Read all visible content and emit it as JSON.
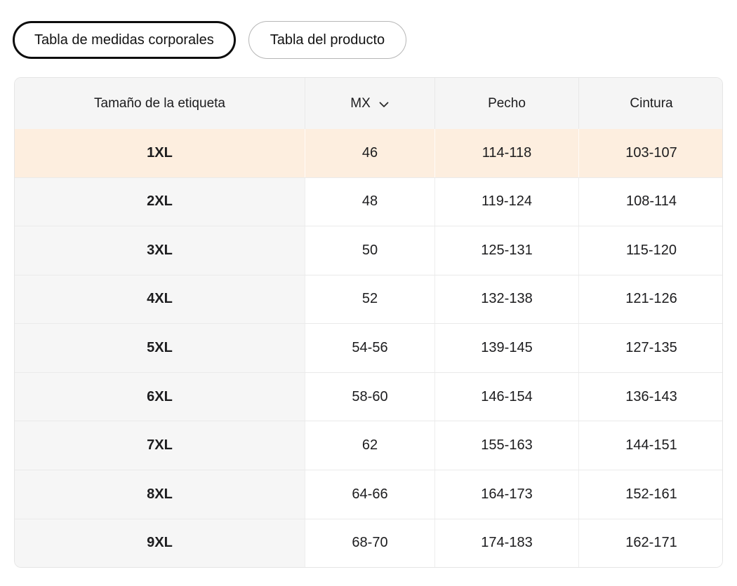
{
  "tabs": [
    {
      "label": "Tabla de medidas corporales",
      "active": true
    },
    {
      "label": "Tabla del producto",
      "active": false
    }
  ],
  "table": {
    "columns": [
      "Tamaño de la etiqueta",
      "MX",
      "Pecho",
      "Cintura"
    ],
    "unit_selector": {
      "value": "MX",
      "icon": "chevron-down-icon"
    },
    "rows": [
      {
        "label": "1XL",
        "mx": "46",
        "pecho": "114-118",
        "cintura": "103-107",
        "highlighted": true
      },
      {
        "label": "2XL",
        "mx": "48",
        "pecho": "119-124",
        "cintura": "108-114",
        "highlighted": false
      },
      {
        "label": "3XL",
        "mx": "50",
        "pecho": "125-131",
        "cintura": "115-120",
        "highlighted": false
      },
      {
        "label": "4XL",
        "mx": "52",
        "pecho": "132-138",
        "cintura": "121-126",
        "highlighted": false
      },
      {
        "label": "5XL",
        "mx": "54-56",
        "pecho": "139-145",
        "cintura": "127-135",
        "highlighted": false
      },
      {
        "label": "6XL",
        "mx": "58-60",
        "pecho": "146-154",
        "cintura": "136-143",
        "highlighted": false
      },
      {
        "label": "7XL",
        "mx": "62",
        "pecho": "155-163",
        "cintura": "144-151",
        "highlighted": false
      },
      {
        "label": "8XL",
        "mx": "64-66",
        "pecho": "164-173",
        "cintura": "152-161",
        "highlighted": false
      },
      {
        "label": "9XL",
        "mx": "68-70",
        "pecho": "174-183",
        "cintura": "162-171",
        "highlighted": false
      }
    ]
  },
  "colors": {
    "highlight_row": "#fdeedf",
    "header_bg": "#f5f5f5",
    "first_column_bg": "#f6f6f6",
    "border": "#e5e5e5",
    "text": "#1c1c1e",
    "active_tab_border": "#0d0d0d",
    "inactive_tab_border": "#b6b6b6"
  }
}
